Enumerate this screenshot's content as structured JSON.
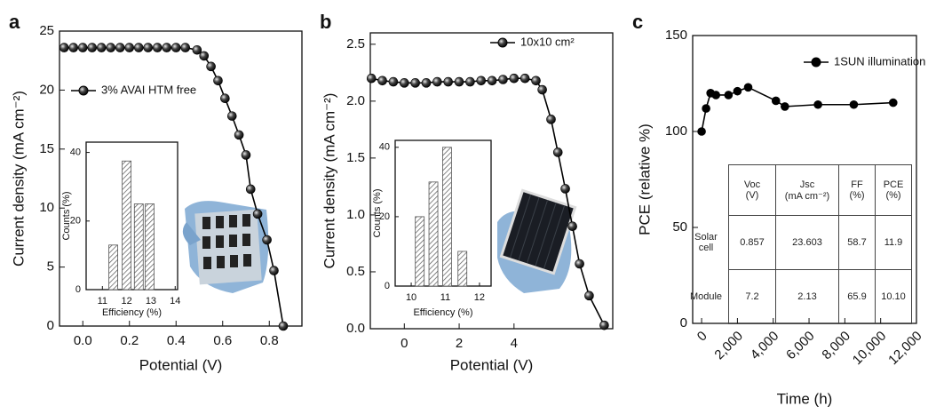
{
  "chart_data": [
    {
      "type": "line",
      "panel_label": "a",
      "xlabel": "Potential (V)",
      "ylabel": "Current density (mA cm⁻²)",
      "x": [
        -0.08,
        -0.04,
        0.0,
        0.04,
        0.08,
        0.12,
        0.16,
        0.2,
        0.24,
        0.28,
        0.32,
        0.36,
        0.4,
        0.44,
        0.49,
        0.52,
        0.55,
        0.58,
        0.61,
        0.64,
        0.67,
        0.7,
        0.72,
        0.75,
        0.79,
        0.82,
        0.86
      ],
      "series": [
        {
          "name": "3% AVAI HTM free",
          "color": "#000000",
          "values": [
            23.6,
            23.6,
            23.6,
            23.6,
            23.6,
            23.6,
            23.6,
            23.6,
            23.6,
            23.6,
            23.6,
            23.6,
            23.6,
            23.6,
            23.4,
            22.9,
            22.0,
            20.8,
            19.3,
            17.8,
            16.2,
            14.5,
            11.6,
            9.5,
            7.3,
            4.7,
            0
          ]
        }
      ],
      "xlim": [
        -0.1,
        0.94
      ],
      "xticks": [
        {
          "value": 0,
          "label": "0.0"
        },
        0.2,
        0.4,
        0.6,
        0.8
      ],
      "ylim": [
        0,
        25
      ],
      "yticks": [
        0,
        5,
        10,
        15,
        20,
        25
      ]
    },
    {
      "type": "bar",
      "xlabel": "Efficiency (%)",
      "ylabel": "Counts (%)",
      "color": "#555555",
      "x": [
        11.45,
        12.0,
        12.5,
        12.95
      ],
      "values": [
        13,
        37.5,
        25,
        25
      ],
      "xlim": [
        10.33,
        14.1
      ],
      "xticks": [
        11,
        12,
        13,
        14
      ],
      "ylim": [
        0,
        43
      ],
      "yticks": [
        0,
        20,
        40
      ]
    },
    {
      "type": "line",
      "panel_label": "b",
      "xlabel": "Potential (V)",
      "ylabel": "Current density (mA cm⁻²)",
      "x": [
        -1.2,
        -0.8,
        -0.4,
        0.0,
        0.4,
        0.8,
        1.2,
        1.6,
        2.0,
        2.4,
        2.8,
        3.2,
        3.6,
        4.0,
        4.4,
        4.8,
        5.03,
        5.35,
        5.6,
        5.87,
        6.13,
        6.39,
        6.74,
        7.29
      ],
      "series": [
        {
          "name": "10x10 cm²",
          "color": "#000000",
          "values": [
            2.2,
            2.18,
            2.17,
            2.16,
            2.16,
            2.16,
            2.17,
            2.17,
            2.17,
            2.17,
            2.18,
            2.18,
            2.19,
            2.2,
            2.2,
            2.18,
            2.1,
            1.84,
            1.55,
            1.23,
            0.9,
            0.57,
            0.29,
            0.03
          ]
        }
      ],
      "xlim": [
        -1.24,
        7.6
      ],
      "xticks": [
        0,
        2,
        4
      ],
      "ylim": [
        0,
        2.6
      ],
      "yticks": [
        {
          "value": 0,
          "label": "0.0"
        },
        0.5,
        {
          "value": 1,
          "label": "1.0"
        },
        1.5,
        {
          "value": 2,
          "label": "2.0"
        },
        2.5
      ]
    },
    {
      "type": "bar",
      "xlabel": "Efficiency (%)",
      "ylabel": "Counts (%)",
      "color": "#555555",
      "x": [
        10.25,
        10.65,
        11.05,
        11.5
      ],
      "values": [
        20,
        30,
        40,
        10
      ],
      "xlim": [
        9.53,
        12.34
      ],
      "xticks": [
        10,
        11,
        12
      ],
      "ylim": [
        0,
        42
      ],
      "yticks": [
        0,
        20,
        40
      ]
    },
    {
      "type": "line",
      "panel_label": "c",
      "xlabel": "Time (h)",
      "ylabel": "PCE (relative %)",
      "x": [
        0,
        250,
        500,
        800,
        1500,
        2000,
        2600,
        4150,
        4650,
        6500,
        8500,
        10700
      ],
      "series": [
        {
          "name": "1SUN illumination",
          "color": "#000000",
          "values": [
            100,
            112,
            120,
            119,
            119,
            121,
            123,
            116,
            113,
            114,
            114,
            115
          ]
        }
      ],
      "xlim": [
        -500,
        12000
      ],
      "xticks": [
        0,
        {
          "value": 2000,
          "label": "2,000"
        },
        {
          "value": 4000,
          "label": "4,000"
        },
        {
          "value": 6000,
          "label": "6,000"
        },
        {
          "value": 8000,
          "label": "8,000"
        },
        {
          "value": 10000,
          "label": "10,000"
        },
        {
          "value": 12000,
          "label": "12,000"
        }
      ],
      "ylim": [
        0,
        150
      ],
      "yticks": [
        0,
        50,
        100,
        150
      ],
      "table": {
        "columns": [
          {
            "name": "Voc",
            "unit": "(V)"
          },
          {
            "name": "Jsc",
            "unit": "(mA cm⁻²)"
          },
          {
            "name": "FF",
            "unit": "(%)"
          },
          {
            "name": "PCE",
            "unit": "(%)"
          }
        ],
        "rows": [
          {
            "label": "Solar cell",
            "cells": [
              "0.857",
              "23.603",
              "58.7",
              "11.9"
            ]
          },
          {
            "label": "Module",
            "cells": [
              "7.2",
              "2.13",
              "65.9",
              "10.10"
            ]
          }
        ]
      }
    }
  ]
}
